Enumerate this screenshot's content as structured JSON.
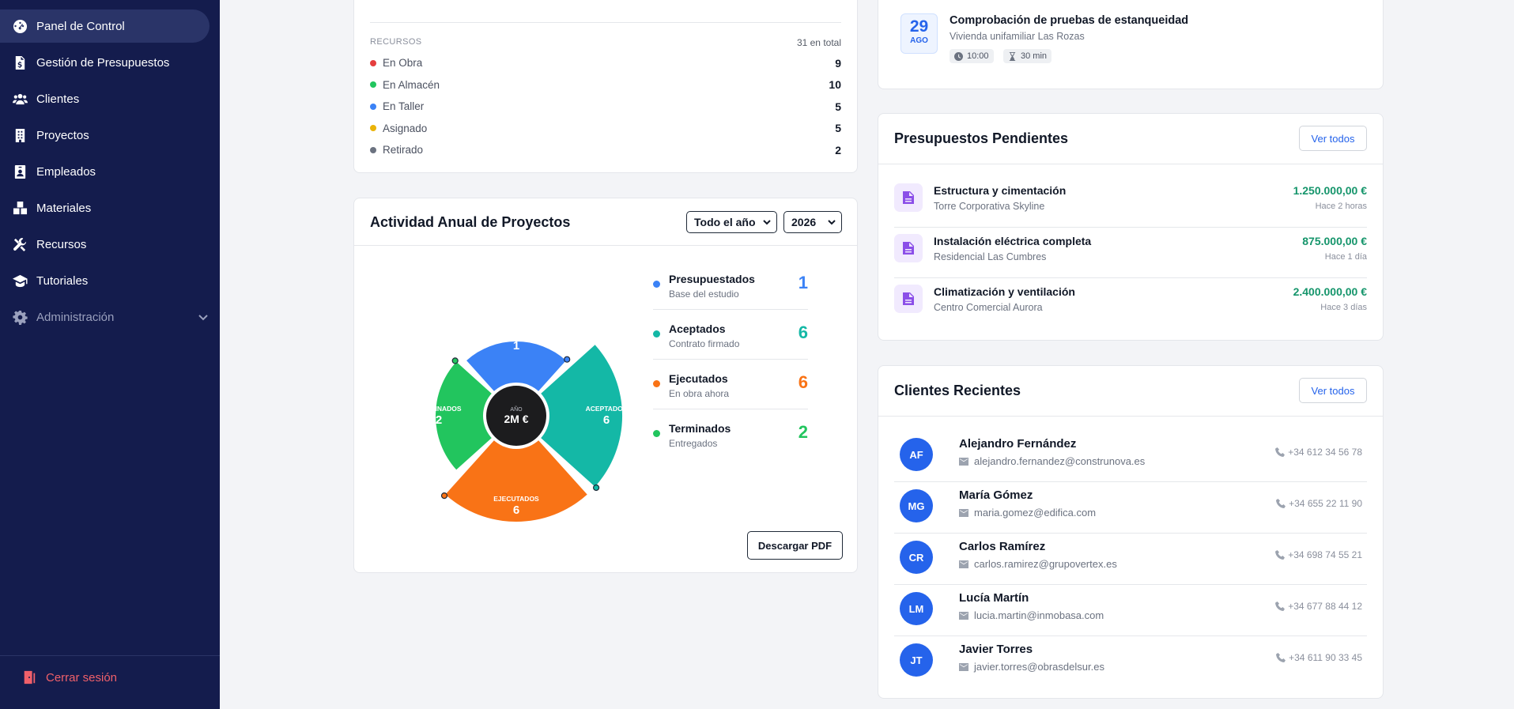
{
  "sidebar": {
    "items": [
      {
        "label": "Panel de Control",
        "icon": "gauge-icon"
      },
      {
        "label": "Gestión de Presupuestos",
        "icon": "file-invoice-icon"
      },
      {
        "label": "Clientes",
        "icon": "users-icon"
      },
      {
        "label": "Proyectos",
        "icon": "building-icon"
      },
      {
        "label": "Empleados",
        "icon": "id-badge-icon"
      },
      {
        "label": "Materiales",
        "icon": "boxes-icon"
      },
      {
        "label": "Recursos",
        "icon": "tools-icon"
      },
      {
        "label": "Tutoriales",
        "icon": "graduation-cap-icon"
      },
      {
        "label": "Administración",
        "icon": "gear-icon"
      }
    ],
    "logout_label": "Cerrar sesión"
  },
  "resources": {
    "header_label": "RECURSOS",
    "total_label": "31 en total",
    "rows": [
      {
        "label": "En Obra",
        "value": "9",
        "color": "#e53e3e"
      },
      {
        "label": "En Almacén",
        "value": "10",
        "color": "#22c55e"
      },
      {
        "label": "En Taller",
        "value": "5",
        "color": "#3b82f6"
      },
      {
        "label": "Asignado",
        "value": "5",
        "color": "#eab308"
      },
      {
        "label": "Retirado",
        "value": "2",
        "color": "#6b7280"
      }
    ]
  },
  "activity": {
    "title": "Actividad Anual de Proyectos",
    "period_select": "Todo el año",
    "year_select": "2026",
    "download_label": "Descargar PDF",
    "center_label": "AÑO",
    "center_value": "2M €",
    "legend": [
      {
        "name": "Presupuestados",
        "sub": "Base del estudio",
        "value": "1",
        "color": "#3b82f6"
      },
      {
        "name": "Aceptados",
        "sub": "Contrato firmado",
        "value": "6",
        "color": "#14b8a6"
      },
      {
        "name": "Ejecutados",
        "sub": "En obra ahora",
        "value": "6",
        "color": "#f97316"
      },
      {
        "name": "Terminados",
        "sub": "Entregados",
        "value": "2",
        "color": "#22c55e"
      }
    ]
  },
  "chart_data": {
    "type": "pie",
    "title": "Actividad Anual de Proyectos",
    "categories": [
      "PRESUPUESTADOS",
      "ACEPTADOS",
      "EJECUTADOS",
      "TERMINADOS"
    ],
    "values": [
      1,
      6,
      6,
      2
    ],
    "colors": [
      "#3b82f6",
      "#14b8a6",
      "#f97316",
      "#22c55e"
    ],
    "center_label": "AÑO",
    "center_value": "2M €"
  },
  "event": {
    "day": "29",
    "month": "AGO",
    "title": "Comprobación de pruebas de estanqueidad",
    "subtitle": "Vivienda unifamiliar Las Rozas",
    "time": "10:00",
    "duration": "30 min"
  },
  "pending": {
    "title": "Presupuestos Pendientes",
    "view_all": "Ver todos",
    "items": [
      {
        "title": "Estructura y cimentación",
        "client": "Torre Corporativa Skyline",
        "amount": "1.250.000,00 €",
        "when": "Hace 2 horas"
      },
      {
        "title": "Instalación eléctrica completa",
        "client": "Residencial Las Cumbres",
        "amount": "875.000,00 €",
        "when": "Hace 1 día"
      },
      {
        "title": "Climatización y ventilación",
        "client": "Centro Comercial Aurora",
        "amount": "2.400.000,00 €",
        "when": "Hace 3 días"
      }
    ]
  },
  "clients": {
    "title": "Clientes Recientes",
    "view_all": "Ver todos",
    "items": [
      {
        "initials": "AF",
        "name": "Alejandro Fernández",
        "email": "alejandro.fernandez@construnova.es",
        "phone": "+34 612 34 56 78"
      },
      {
        "initials": "MG",
        "name": "María Gómez",
        "email": "maria.gomez@edifica.com",
        "phone": "+34 655 22 11 90"
      },
      {
        "initials": "CR",
        "name": "Carlos Ramírez",
        "email": "carlos.ramirez@grupovertex.es",
        "phone": "+34 698 74 55 21"
      },
      {
        "initials": "LM",
        "name": "Lucía Martín",
        "email": "lucia.martin@inmobasa.com",
        "phone": "+34 677 88 44 12"
      },
      {
        "initials": "JT",
        "name": "Javier Torres",
        "email": "javier.torres@obrasdelsur.es",
        "phone": "+34 611 90 33 45"
      }
    ]
  }
}
